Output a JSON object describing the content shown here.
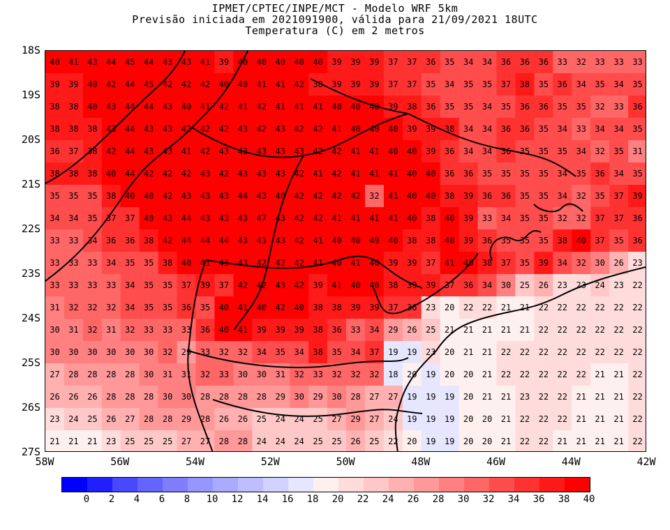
{
  "title": {
    "line1": "IPMET/CPTEC/INPE/MCT - Modelo WRF 5km",
    "line2": "Previsão iniciada em 2021091900, válida para 21/09/2021 18UTC",
    "line3": "Temperatura (C) em 2 metros"
  },
  "map": {
    "lat_labels": [
      "18S",
      "19S",
      "20S",
      "21S",
      "22S",
      "23S",
      "24S",
      "25S",
      "26S",
      "27S"
    ],
    "lon_labels": [
      "58W",
      "56W",
      "54W",
      "52W",
      "50W",
      "48W",
      "46W",
      "44W",
      "42W"
    ],
    "lon_range": [
      -58,
      -42
    ],
    "lat_range": [
      -18,
      -27
    ],
    "grid_rows": [
      [
        40,
        41,
        43,
        44,
        45,
        44,
        43,
        43,
        41,
        39,
        40,
        40,
        40,
        40,
        40,
        39,
        39,
        39,
        37,
        37,
        36,
        35,
        34,
        34,
        36,
        36,
        36,
        33,
        32,
        33,
        33,
        33
      ],
      [
        39,
        39,
        40,
        42,
        44,
        45,
        42,
        42,
        42,
        40,
        40,
        41,
        41,
        42,
        38,
        39,
        39,
        39,
        37,
        37,
        35,
        34,
        35,
        35,
        37,
        38,
        35,
        36,
        34,
        35,
        34,
        35
      ],
      [
        38,
        38,
        40,
        43,
        44,
        44,
        43,
        40,
        41,
        42,
        41,
        42,
        41,
        41,
        41,
        40,
        40,
        40,
        39,
        38,
        36,
        35,
        35,
        34,
        35,
        36,
        36,
        35,
        35,
        32,
        33,
        36
      ],
      [
        38,
        38,
        38,
        43,
        44,
        43,
        43,
        42,
        42,
        42,
        43,
        42,
        43,
        42,
        42,
        41,
        40,
        40,
        40,
        39,
        39,
        38,
        34,
        34,
        36,
        36,
        35,
        34,
        33,
        34,
        34,
        35
      ],
      [
        36,
        37,
        38,
        42,
        44,
        43,
        43,
        41,
        42,
        43,
        43,
        43,
        43,
        43,
        42,
        42,
        41,
        41,
        40,
        40,
        39,
        36,
        34,
        34,
        36,
        35,
        35,
        35,
        34,
        32,
        35,
        31
      ],
      [
        38,
        38,
        38,
        40,
        44,
        42,
        42,
        42,
        43,
        42,
        43,
        43,
        43,
        42,
        41,
        42,
        41,
        41,
        41,
        40,
        40,
        36,
        36,
        35,
        35,
        35,
        35,
        34,
        35,
        36,
        34,
        35
      ],
      [
        35,
        35,
        35,
        38,
        40,
        40,
        42,
        43,
        43,
        43,
        44,
        43,
        40,
        42,
        42,
        42,
        42,
        32,
        41,
        40,
        40,
        38,
        39,
        36,
        36,
        35,
        35,
        34,
        32,
        35,
        37,
        39
      ],
      [
        34,
        34,
        35,
        37,
        37,
        40,
        43,
        44,
        43,
        43,
        43,
        47,
        43,
        42,
        42,
        41,
        41,
        41,
        41,
        40,
        38,
        40,
        39,
        33,
        34,
        35,
        35,
        32,
        32,
        37,
        37,
        36
      ],
      [
        33,
        33,
        34,
        36,
        36,
        38,
        42,
        44,
        44,
        44,
        43,
        43,
        43,
        42,
        41,
        40,
        40,
        40,
        40,
        38,
        38,
        40,
        39,
        36,
        35,
        35,
        35,
        38,
        40,
        37,
        35,
        36
      ],
      [
        33,
        33,
        33,
        34,
        35,
        35,
        38,
        40,
        41,
        43,
        43,
        42,
        42,
        42,
        41,
        40,
        41,
        40,
        39,
        39,
        37,
        41,
        40,
        38,
        37,
        35,
        39,
        34,
        32,
        30,
        26,
        23
      ],
      [
        33,
        33,
        33,
        33,
        34,
        35,
        35,
        37,
        39,
        37,
        42,
        42,
        43,
        42,
        39,
        41,
        40,
        40,
        38,
        39,
        39,
        37,
        36,
        34,
        30,
        25,
        26,
        23,
        23,
        24,
        23,
        22
      ],
      [
        31,
        32,
        32,
        32,
        34,
        35,
        35,
        36,
        35,
        40,
        41,
        40,
        42,
        40,
        38,
        38,
        39,
        39,
        37,
        36,
        23,
        20,
        22,
        22,
        21,
        21,
        22,
        22,
        22,
        22,
        22,
        22
      ],
      [
        30,
        31,
        32,
        31,
        32,
        33,
        33,
        33,
        36,
        40,
        41,
        39,
        39,
        39,
        38,
        36,
        33,
        34,
        29,
        26,
        25,
        21,
        21,
        21,
        21,
        21,
        22,
        22,
        22,
        22,
        22,
        22
      ],
      [
        30,
        30,
        30,
        30,
        30,
        30,
        32,
        29,
        33,
        32,
        32,
        34,
        35,
        34,
        38,
        35,
        34,
        37,
        19,
        19,
        23,
        20,
        21,
        21,
        22,
        22,
        22,
        22,
        22,
        22,
        22,
        22
      ],
      [
        27,
        28,
        28,
        28,
        28,
        30,
        31,
        31,
        32,
        33,
        30,
        30,
        31,
        32,
        33,
        32,
        32,
        32,
        18,
        20,
        19,
        20,
        20,
        21,
        22,
        22,
        22,
        22,
        22,
        21,
        21,
        22
      ],
      [
        26,
        26,
        26,
        28,
        28,
        28,
        30,
        30,
        28,
        28,
        28,
        28,
        29,
        30,
        29,
        30,
        28,
        27,
        27,
        19,
        19,
        19,
        20,
        21,
        21,
        23,
        22,
        22,
        21,
        21,
        21,
        22
      ],
      [
        23,
        24,
        25,
        26,
        27,
        28,
        28,
        29,
        28,
        26,
        26,
        25,
        24,
        24,
        25,
        27,
        29,
        27,
        24,
        19,
        19,
        19,
        20,
        20,
        21,
        22,
        22,
        22,
        21,
        21,
        21,
        22
      ],
      [
        21,
        21,
        21,
        23,
        25,
        25,
        25,
        27,
        27,
        28,
        28,
        24,
        24,
        24,
        25,
        25,
        26,
        25,
        22,
        20,
        19,
        19,
        20,
        20,
        21,
        22,
        22,
        21,
        21,
        21,
        21,
        22
      ]
    ]
  },
  "colorbar": {
    "labels": [
      "0",
      "2",
      "4",
      "6",
      "8",
      "10",
      "12",
      "14",
      "16",
      "18",
      "20",
      "22",
      "24",
      "26",
      "28",
      "30",
      "32",
      "34",
      "36",
      "38",
      "40"
    ],
    "colors": [
      "#0000ff",
      "#2020ff",
      "#4848ff",
      "#6464ff",
      "#7e7eff",
      "#9696ff",
      "#aaaaff",
      "#bebeff",
      "#d2d2ff",
      "#e6e6ff",
      "#fff0f0",
      "#ffdcdc",
      "#ffc8c8",
      "#ffb0b0",
      "#ff9898",
      "#ff8080",
      "#ff6666",
      "#ff4c4c",
      "#ff3232",
      "#ff1a1a",
      "#ff0000"
    ]
  }
}
